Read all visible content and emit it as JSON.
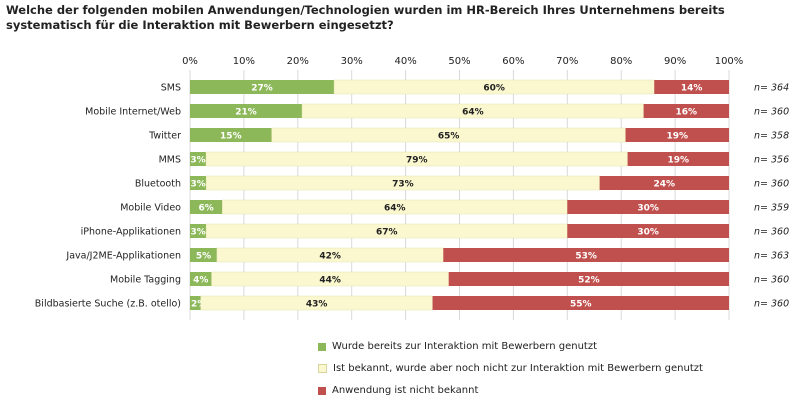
{
  "chart_data": {
    "type": "bar",
    "stacked": true,
    "orientation": "horizontal",
    "title": "Welche der folgenden mobilen Anwendungen/Technologien wurden im HR-Bereich Ihres Unternehmens bereits systematisch für die Interaktion mit Bewerbern eingesetzt?",
    "xlim": [
      0,
      100
    ],
    "x_ticks": [
      "0%",
      "10%",
      "20%",
      "30%",
      "40%",
      "50%",
      "60%",
      "70%",
      "80%",
      "90%",
      "100%"
    ],
    "categories": [
      "SMS",
      "Mobile Internet/Web",
      "Twitter",
      "MMS",
      "Bluetooth",
      "Mobile Video",
      "iPhone-Applikationen",
      "Java/J2ME-Applikationen",
      "Mobile Tagging",
      "Bildbasierte Suche (z.B. otello)"
    ],
    "n_labels": [
      "n= 364",
      "n= 360",
      "n= 358",
      "n= 356",
      "n= 360",
      "n= 359",
      "n= 360",
      "n= 363",
      "n= 360",
      "n= 360"
    ],
    "series": [
      {
        "name": "Wurde bereits zur Interaktion mit Bewerbern genutzt",
        "color": "#8db85a",
        "values": [
          27,
          21,
          15,
          3,
          3,
          6,
          3,
          5,
          4,
          2
        ]
      },
      {
        "name": "Ist bekannt, wurde aber noch nicht zur Interaktion mit Bewerbern genutzt",
        "color": "#fbf8cf",
        "values": [
          60,
          64,
          65,
          79,
          73,
          64,
          67,
          42,
          44,
          43
        ]
      },
      {
        "name": "Anwendung ist nicht bekannt",
        "color": "#c0504d",
        "values": [
          14,
          16,
          19,
          19,
          24,
          30,
          30,
          53,
          52,
          55
        ]
      }
    ],
    "grid": true,
    "legend_position": "bottom"
  }
}
